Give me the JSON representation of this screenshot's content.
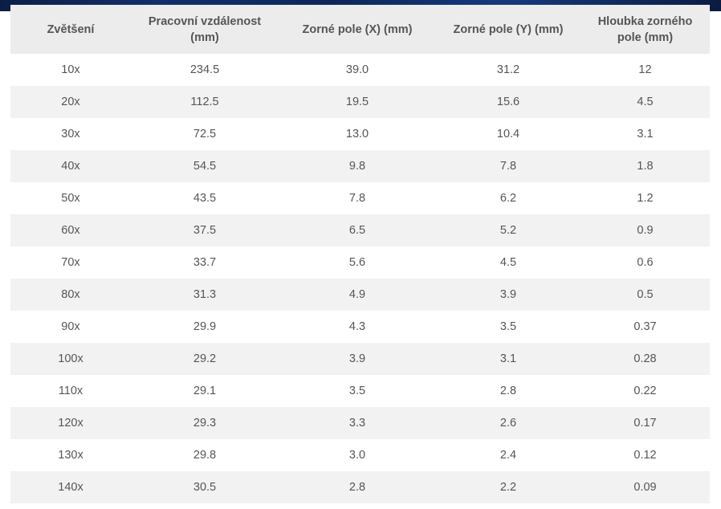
{
  "colors": {
    "banner": "#132f6a",
    "header_bg": "#ececec",
    "row_alt_bg": "#f2f2f2",
    "text": "#555555"
  },
  "table": {
    "headers": [
      "Zvětšení",
      "Pracovní vzdálenost (mm)",
      "Zorné pole (X) (mm)",
      "Zorné pole (Y) (mm)",
      "Hloubka zorného pole (mm)"
    ],
    "rows": [
      [
        "10x",
        "234.5",
        "39.0",
        "31.2",
        "12"
      ],
      [
        "20x",
        "112.5",
        "19.5",
        "15.6",
        "4.5"
      ],
      [
        "30x",
        "72.5",
        "13.0",
        "10.4",
        "3.1"
      ],
      [
        "40x",
        "54.5",
        "9.8",
        "7.8",
        "1.8"
      ],
      [
        "50x",
        "43.5",
        "7.8",
        "6.2",
        "1.2"
      ],
      [
        "60x",
        "37.5",
        "6.5",
        "5.2",
        "0.9"
      ],
      [
        "70x",
        "33.7",
        "5.6",
        "4.5",
        "0.6"
      ],
      [
        "80x",
        "31.3",
        "4.9",
        "3.9",
        "0.5"
      ],
      [
        "90x",
        "29.9",
        "4.3",
        "3.5",
        "0.37"
      ],
      [
        "100x",
        "29.2",
        "3.9",
        "3.1",
        "0.28"
      ],
      [
        "110x",
        "29.1",
        "3.5",
        "2.8",
        "0.22"
      ],
      [
        "120x",
        "29.3",
        "3.3",
        "2.6",
        "0.17"
      ],
      [
        "130x",
        "29.8",
        "3.0",
        "2.4",
        "0.12"
      ],
      [
        "140x",
        "30.5",
        "2.8",
        "2.2",
        "0.09"
      ]
    ]
  }
}
